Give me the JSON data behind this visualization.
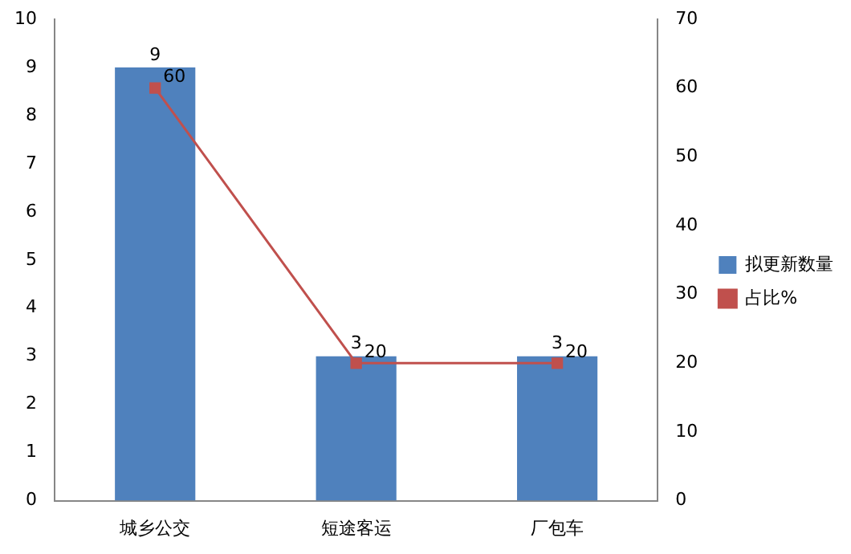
{
  "chart_data": {
    "type": "bar",
    "categories": [
      "城乡公交",
      "短途客运",
      "厂包车"
    ],
    "series": [
      {
        "name": "拟更新数量",
        "color": "#4f81bd",
        "values": [
          9,
          3,
          3
        ]
      },
      {
        "name": "占比%",
        "type": "line",
        "axis": "y2",
        "color": "#c0504d",
        "values": [
          60,
          20,
          20
        ]
      }
    ],
    "ylim": [
      0,
      10
    ],
    "yticks": [
      0,
      1,
      2,
      3,
      4,
      5,
      6,
      7,
      8,
      9,
      10
    ],
    "y2lim": [
      0,
      70
    ],
    "y2ticks": [
      0,
      10,
      20,
      30,
      40,
      50,
      60,
      70
    ],
    "grid": false,
    "legend": "right",
    "marker": "square",
    "data_labels": true
  }
}
